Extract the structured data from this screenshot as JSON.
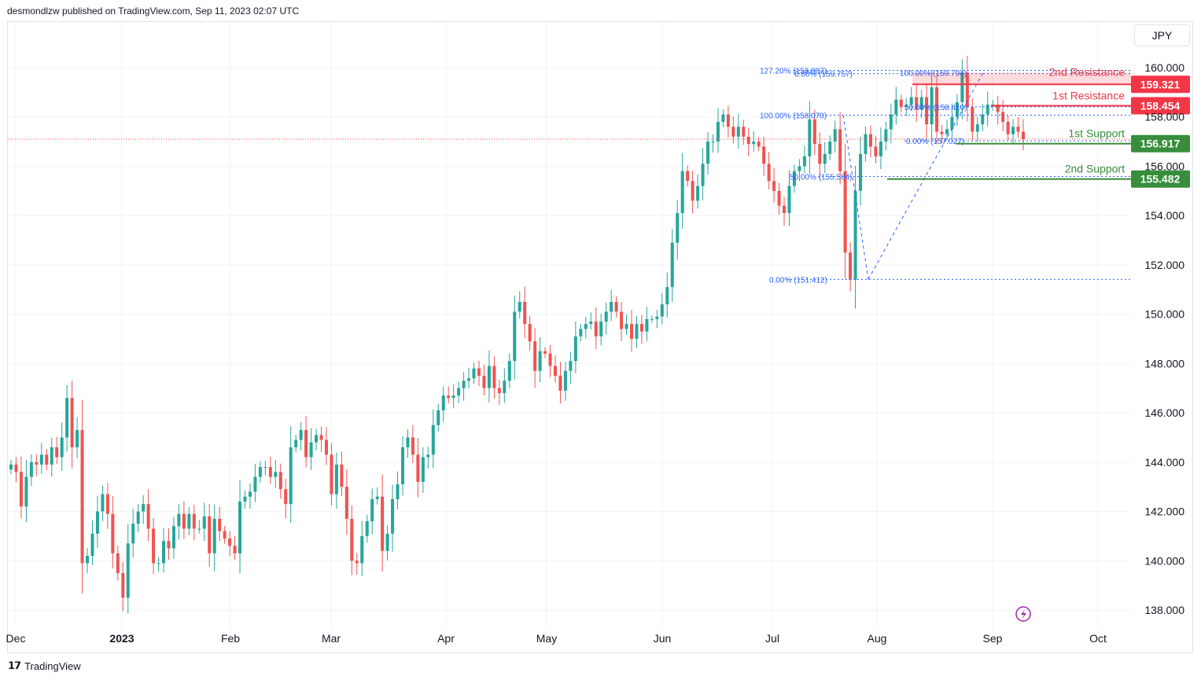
{
  "header": {
    "published": "desmondlzw published on TradingView.com, Sep 11, 2023 02:07 UTC"
  },
  "currency_button": "JPY",
  "footer": {
    "brand": "TradingView"
  },
  "colors": {
    "up": "#26a69a",
    "down": "#ef5350",
    "resistance": "#f23645",
    "support": "#388e3c",
    "fib": "#2962ff"
  },
  "chart_data": {
    "type": "candlestick",
    "ylim": [
      136.8,
      160.8
    ],
    "yticks": [
      160.0,
      158.0,
      156.0,
      154.0,
      152.0,
      150.0,
      148.0,
      146.0,
      144.0,
      142.0,
      140.0,
      138.0
    ],
    "ytick_labels": [
      "160.000",
      "158.000",
      "156.000",
      "154.000",
      "152.000",
      "150.000",
      "148.000",
      "146.000",
      "144.000",
      "142.000",
      "140.000",
      "138.000"
    ],
    "xticks": [
      {
        "label": "Dec",
        "bold": false
      },
      {
        "label": "2023",
        "bold": true
      },
      {
        "label": "Feb",
        "bold": false
      },
      {
        "label": "Mar",
        "bold": false
      },
      {
        "label": "Apr",
        "bold": false
      },
      {
        "label": "May",
        "bold": false
      },
      {
        "label": "Jun",
        "bold": false
      },
      {
        "label": "Jul",
        "bold": false
      },
      {
        "label": "Aug",
        "bold": false
      },
      {
        "label": "Sep",
        "bold": false
      },
      {
        "label": "Oct",
        "bold": false
      }
    ],
    "candle_closes": [
      143.9,
      143.6,
      142.2,
      143.4,
      144.0,
      143.9,
      144.3,
      143.9,
      144.6,
      144.2,
      145.0,
      146.6,
      144.6,
      145.3,
      139.9,
      140.2,
      141.1,
      142.0,
      142.7,
      141.9,
      140.3,
      139.5,
      138.5,
      140.7,
      141.5,
      142.0,
      142.3,
      141.3,
      139.9,
      139.9,
      140.8,
      140.5,
      141.4,
      141.9,
      141.3,
      141.9,
      141.3,
      141.3,
      141.8,
      140.3,
      141.7,
      141.2,
      140.9,
      140.6,
      140.3,
      142.4,
      142.6,
      142.8,
      143.4,
      143.8,
      143.8,
      143.4,
      143.6,
      142.9,
      142.3,
      144.6,
      144.9,
      145.3,
      144.2,
      144.8,
      145.1,
      144.9,
      144.3,
      142.7,
      143.9,
      143.0,
      141.7,
      140.0,
      139.9,
      141.0,
      141.6,
      142.5,
      142.6,
      140.4,
      141.1,
      142.5,
      143.1,
      144.6,
      145.0,
      144.3,
      143.2,
      144.2,
      144.3,
      145.5,
      146.1,
      146.7,
      146.6,
      146.7,
      147.0,
      147.3,
      147.4,
      147.8,
      147.5,
      147.0,
      147.9,
      147.0,
      146.8,
      147.3,
      148.1,
      150.1,
      150.5,
      149.6,
      148.9,
      147.7,
      148.5,
      148.4,
      147.9,
      147.5,
      146.9,
      147.7,
      148.1,
      149.1,
      149.4,
      149.6,
      149.7,
      149.1,
      149.7,
      150.1,
      150.5,
      150.1,
      149.4,
      149.6,
      149.0,
      149.6,
      149.3,
      149.8,
      149.8,
      149.9,
      150.4,
      151.1,
      152.9,
      154.1,
      155.8,
      155.4,
      154.6,
      155.2,
      156.1,
      157.0,
      157.0,
      157.8,
      158.1,
      157.6,
      157.2,
      157.6,
      157.2,
      156.9,
      157.0,
      156.8,
      156.1,
      155.4,
      155.0,
      154.4,
      154.1,
      155.2,
      155.8,
      156.0,
      156.4,
      157.9,
      156.9,
      156.1,
      156.5,
      157.0,
      157.5,
      155.8,
      152.5,
      151.4,
      155.0,
      156.5,
      157.3,
      156.8,
      156.4,
      157.0,
      157.5,
      158.1,
      158.7,
      158.4,
      158.5,
      158.8,
      158.3,
      158.8,
      157.7,
      159.2,
      157.4,
      157.3,
      157.5,
      158.0,
      158.6,
      159.8,
      158.4,
      157.4,
      157.7,
      158.1,
      158.5,
      158.5,
      158.2,
      157.8,
      157.3,
      157.6,
      157.4,
      157.1
    ],
    "annotations": {
      "resistances": [
        {
          "label": "2nd Resistance",
          "price": "159.321"
        },
        {
          "label": "1st Resistance",
          "price": "158.454"
        }
      ],
      "supports": [
        {
          "label": "1st Support",
          "price": "156.917"
        },
        {
          "label": "2nd Support",
          "price": "155.482"
        }
      ],
      "fib_labels": [
        "127.20% (159.887)",
        "0.00% (159.757)",
        "100.00% (159.794)",
        "50.00% (158.410)",
        "100.00% (158.070)",
        "0.00% (157.027)",
        "50.00% (155.584)",
        "0.00% (151.412)"
      ],
      "last_price": 157.1
    }
  }
}
